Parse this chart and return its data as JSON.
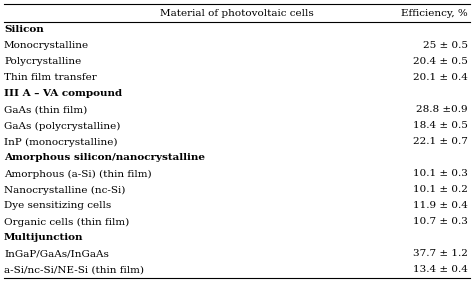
{
  "header": [
    "Material of photovoltaic cells",
    "Efficiency, %"
  ],
  "rows": [
    {
      "text": "Silicon",
      "efficiency": "",
      "bold": true
    },
    {
      "text": "Monocrystalline",
      "efficiency": "25 ± 0.5",
      "bold": false
    },
    {
      "text": "Polycrystalline",
      "efficiency": "20.4 ± 0.5",
      "bold": false
    },
    {
      "text": "Thin film transfer",
      "efficiency": "20.1 ± 0.4",
      "bold": false
    },
    {
      "text": "III A – VA compound",
      "efficiency": "",
      "bold": true
    },
    {
      "text": "GaAs (thin film)",
      "efficiency": "28.8 ±0.9",
      "bold": false
    },
    {
      "text": "GaAs (polycrystalline)",
      "efficiency": "18.4 ± 0.5",
      "bold": false
    },
    {
      "text": "InP (monocrystalline)",
      "efficiency": "22.1 ± 0.7",
      "bold": false
    },
    {
      "text": "Amorphous silicon/nanocrystalline",
      "efficiency": "",
      "bold": true
    },
    {
      "text": "Amorphous (a-Si) (thin film)",
      "efficiency": "10.1 ± 0.3",
      "bold": false
    },
    {
      "text": "Nanocrystalline (nc-Si)",
      "efficiency": "10.1 ± 0.2",
      "bold": false
    },
    {
      "text": "Dye sensitizing cells",
      "efficiency": "11.9 ± 0.4",
      "bold": false
    },
    {
      "text": "Organic cells (thin film)",
      "efficiency": "10.7 ± 0.3",
      "bold": false
    },
    {
      "text": "Multijunction",
      "efficiency": "",
      "bold": true
    },
    {
      "text": "InGaP/GaAs/InGaAs",
      "efficiency": "37.7 ± 1.2",
      "bold": false
    },
    {
      "text": "a-Si/nc-Si/NE-Si (thin film)",
      "efficiency": "13.4 ± 0.4",
      "bold": false
    }
  ],
  "bg_color": "#ffffff",
  "line_color": "#000000",
  "text_color": "#000000",
  "font_size": 7.5,
  "header_font_size": 7.5
}
